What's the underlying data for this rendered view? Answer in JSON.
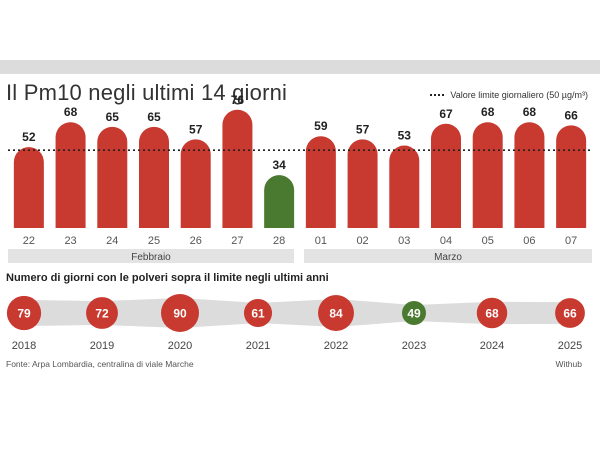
{
  "chart_data": [
    {
      "type": "bar",
      "title": "Il Pm10 negli ultimi 14 giorni",
      "categories": [
        "22",
        "23",
        "24",
        "25",
        "26",
        "27",
        "28",
        "01",
        "02",
        "03",
        "04",
        "05",
        "06",
        "07"
      ],
      "values": [
        52,
        68,
        65,
        65,
        57,
        76,
        34,
        59,
        57,
        53,
        67,
        68,
        68,
        66
      ],
      "months": [
        "Febbraio",
        "Marzo"
      ],
      "threshold": 50,
      "threshold_label": "Valore limite giornaliero (50 µg/m³)",
      "ylim": [
        0,
        90
      ],
      "colors": {
        "above": "#c8392f",
        "below": "#4a7a30"
      }
    },
    {
      "type": "bubble",
      "title": "Numero di giorni con le polveri sopra il limite negli ultimi anni",
      "categories": [
        "2018",
        "2019",
        "2020",
        "2021",
        "2022",
        "2023",
        "2024",
        "2025"
      ],
      "values": [
        79,
        72,
        90,
        61,
        84,
        49,
        68,
        66
      ]
    }
  ],
  "source": "Fonte: Arpa Lombardia, centralina di viale Marche",
  "credit": "Withub"
}
